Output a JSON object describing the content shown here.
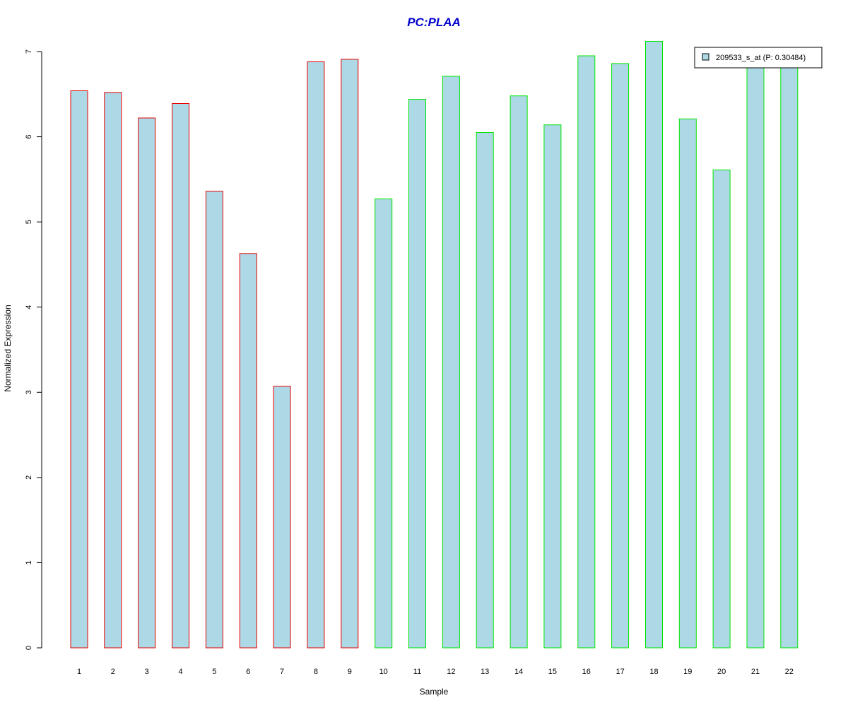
{
  "chart_data": {
    "type": "bar",
    "title": "PC:PLAA",
    "xlabel": "Sample",
    "ylabel": "Normalized Expression",
    "categories": [
      "1",
      "2",
      "3",
      "4",
      "5",
      "6",
      "7",
      "8",
      "9",
      "10",
      "11",
      "12",
      "13",
      "14",
      "15",
      "16",
      "17",
      "18",
      "19",
      "20",
      "21",
      "22"
    ],
    "series": [
      {
        "name": "209533_s_at (P: 0.30484)",
        "values": [
          6.54,
          6.52,
          6.22,
          6.39,
          5.36,
          4.63,
          3.07,
          6.88,
          6.91,
          5.27,
          6.44,
          6.71,
          6.05,
          6.48,
          6.14,
          6.95,
          6.86,
          7.12,
          6.21,
          5.61,
          6.85,
          6.9
        ]
      }
    ],
    "groups": [
      {
        "samples": [
          "1",
          "2",
          "3",
          "4",
          "5",
          "6",
          "7",
          "8",
          "9"
        ],
        "border_color": "#e60000"
      },
      {
        "samples": [
          "10",
          "11",
          "12",
          "13",
          "14",
          "15",
          "16",
          "17",
          "18",
          "19",
          "20",
          "21",
          "22"
        ],
        "border_color": "#00e600"
      }
    ],
    "ylim": [
      0,
      7
    ],
    "yticks": [
      0,
      1,
      2,
      3,
      4,
      5,
      6,
      7
    ],
    "grid": false,
    "legend_position": "top-right",
    "colors": {
      "bar_fill": "#add8e6",
      "title": "#0000cc",
      "axis": "#000000"
    }
  }
}
